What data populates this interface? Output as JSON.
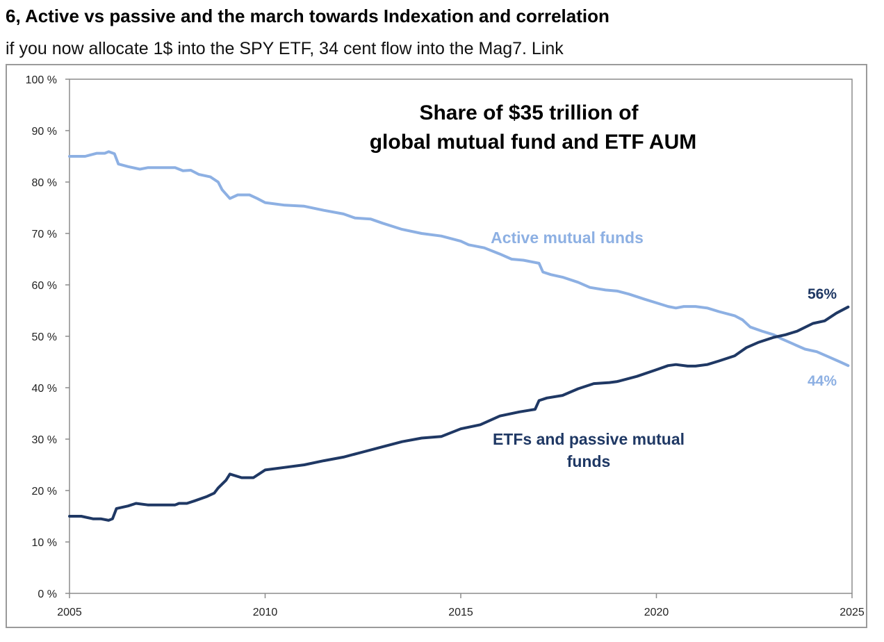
{
  "header": {
    "title": "6, Active vs passive and the march towards Indexation and correlation",
    "subtitle": "if you now allocate 1$ into the SPY ETF, 34 cent flow into the Mag7. Link"
  },
  "chart_data": {
    "type": "line",
    "title_lines": [
      "Share of $35 trillion of",
      "global mutual fund and ETF AUM"
    ],
    "xlabel": "",
    "ylabel": "",
    "xlim": [
      2005,
      2025
    ],
    "ylim": [
      0,
      100
    ],
    "x_ticks": [
      "2005",
      "2010",
      "2015",
      "2020",
      "2025"
    ],
    "y_ticks": [
      "0 %",
      "10 %",
      "20 %",
      "30 %",
      "40 %",
      "50 %",
      "60 %",
      "70 %",
      "80 %",
      "90 %",
      "100 %"
    ],
    "grid": false,
    "colors": {
      "active": "#8db0e3",
      "passive": "#1f3864"
    },
    "series": [
      {
        "name": "Active mutual funds",
        "label_lines": [
          "Active mutual funds"
        ],
        "end_label": "44%",
        "points": [
          [
            2005.0,
            85.0
          ],
          [
            2005.4,
            85.0
          ],
          [
            2005.7,
            85.6
          ],
          [
            2005.9,
            85.6
          ],
          [
            2006.0,
            85.9
          ],
          [
            2006.15,
            85.5
          ],
          [
            2006.25,
            83.5
          ],
          [
            2006.5,
            83.0
          ],
          [
            2006.8,
            82.5
          ],
          [
            2007.0,
            82.8
          ],
          [
            2007.5,
            82.8
          ],
          [
            2007.7,
            82.8
          ],
          [
            2007.9,
            82.2
          ],
          [
            2008.1,
            82.3
          ],
          [
            2008.3,
            81.5
          ],
          [
            2008.6,
            81.0
          ],
          [
            2008.8,
            80.0
          ],
          [
            2008.9,
            78.5
          ],
          [
            2009.1,
            76.8
          ],
          [
            2009.3,
            77.5
          ],
          [
            2009.6,
            77.5
          ],
          [
            2009.8,
            76.8
          ],
          [
            2010.0,
            76.0
          ],
          [
            2010.5,
            75.5
          ],
          [
            2011.0,
            75.3
          ],
          [
            2011.5,
            74.5
          ],
          [
            2012.0,
            73.8
          ],
          [
            2012.3,
            73.0
          ],
          [
            2012.7,
            72.8
          ],
          [
            2013.0,
            72.0
          ],
          [
            2013.5,
            70.8
          ],
          [
            2014.0,
            70.0
          ],
          [
            2014.5,
            69.5
          ],
          [
            2015.0,
            68.5
          ],
          [
            2015.2,
            67.8
          ],
          [
            2015.6,
            67.2
          ],
          [
            2016.0,
            66.0
          ],
          [
            2016.3,
            65.0
          ],
          [
            2016.6,
            64.8
          ],
          [
            2016.8,
            64.5
          ],
          [
            2017.0,
            64.2
          ],
          [
            2017.1,
            62.5
          ],
          [
            2017.3,
            62.0
          ],
          [
            2017.6,
            61.5
          ],
          [
            2018.0,
            60.5
          ],
          [
            2018.3,
            59.5
          ],
          [
            2018.7,
            59.0
          ],
          [
            2019.0,
            58.8
          ],
          [
            2019.3,
            58.2
          ],
          [
            2019.7,
            57.2
          ],
          [
            2020.0,
            56.5
          ],
          [
            2020.3,
            55.8
          ],
          [
            2020.5,
            55.5
          ],
          [
            2020.7,
            55.8
          ],
          [
            2021.0,
            55.8
          ],
          [
            2021.3,
            55.5
          ],
          [
            2021.6,
            54.8
          ],
          [
            2022.0,
            54.0
          ],
          [
            2022.2,
            53.2
          ],
          [
            2022.4,
            51.8
          ],
          [
            2022.7,
            51.0
          ],
          [
            2023.0,
            50.3
          ],
          [
            2023.2,
            49.5
          ],
          [
            2023.5,
            48.5
          ],
          [
            2023.8,
            47.5
          ],
          [
            2024.1,
            47.0
          ],
          [
            2024.4,
            46.0
          ],
          [
            2024.7,
            45.0
          ],
          [
            2024.9,
            44.3
          ]
        ]
      },
      {
        "name": "ETFs and passive mutual funds",
        "label_lines": [
          "ETFs and passive mutual",
          "funds"
        ],
        "end_label": "56%",
        "points": [
          [
            2005.0,
            15.0
          ],
          [
            2005.3,
            15.0
          ],
          [
            2005.6,
            14.5
          ],
          [
            2005.8,
            14.5
          ],
          [
            2006.0,
            14.2
          ],
          [
            2006.1,
            14.5
          ],
          [
            2006.2,
            16.5
          ],
          [
            2006.5,
            17.0
          ],
          [
            2006.7,
            17.5
          ],
          [
            2007.0,
            17.2
          ],
          [
            2007.5,
            17.2
          ],
          [
            2007.7,
            17.2
          ],
          [
            2007.8,
            17.5
          ],
          [
            2008.0,
            17.5
          ],
          [
            2008.2,
            18.0
          ],
          [
            2008.5,
            18.8
          ],
          [
            2008.7,
            19.5
          ],
          [
            2008.8,
            20.5
          ],
          [
            2009.0,
            22.0
          ],
          [
            2009.1,
            23.2
          ],
          [
            2009.4,
            22.5
          ],
          [
            2009.7,
            22.5
          ],
          [
            2010.0,
            24.0
          ],
          [
            2010.5,
            24.5
          ],
          [
            2011.0,
            25.0
          ],
          [
            2011.5,
            25.8
          ],
          [
            2012.0,
            26.5
          ],
          [
            2012.5,
            27.5
          ],
          [
            2013.0,
            28.5
          ],
          [
            2013.5,
            29.5
          ],
          [
            2014.0,
            30.2
          ],
          [
            2014.5,
            30.5
          ],
          [
            2015.0,
            32.0
          ],
          [
            2015.5,
            32.8
          ],
          [
            2016.0,
            34.5
          ],
          [
            2016.5,
            35.3
          ],
          [
            2016.9,
            35.8
          ],
          [
            2017.0,
            37.5
          ],
          [
            2017.2,
            38.0
          ],
          [
            2017.6,
            38.5
          ],
          [
            2018.0,
            39.8
          ],
          [
            2018.4,
            40.8
          ],
          [
            2018.8,
            41.0
          ],
          [
            2019.0,
            41.2
          ],
          [
            2019.5,
            42.2
          ],
          [
            2020.0,
            43.5
          ],
          [
            2020.3,
            44.3
          ],
          [
            2020.5,
            44.5
          ],
          [
            2020.8,
            44.2
          ],
          [
            2021.0,
            44.2
          ],
          [
            2021.3,
            44.5
          ],
          [
            2021.6,
            45.2
          ],
          [
            2022.0,
            46.2
          ],
          [
            2022.3,
            47.8
          ],
          [
            2022.6,
            48.8
          ],
          [
            2023.0,
            49.8
          ],
          [
            2023.3,
            50.3
          ],
          [
            2023.6,
            51.0
          ],
          [
            2024.0,
            52.5
          ],
          [
            2024.3,
            53.0
          ],
          [
            2024.6,
            54.5
          ],
          [
            2024.9,
            55.7
          ]
        ]
      }
    ]
  }
}
